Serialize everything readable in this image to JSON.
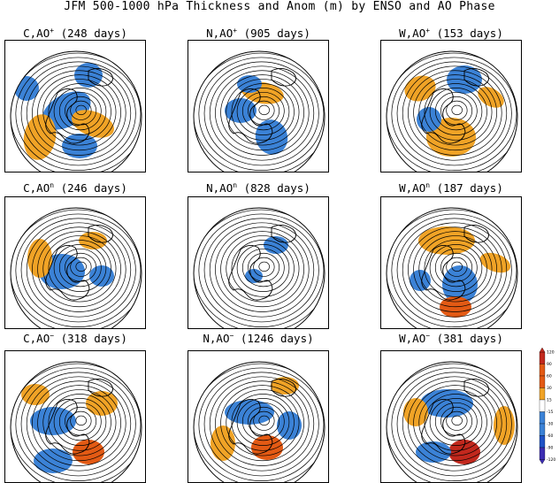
{
  "title": "JFM 500-1000 hPa Thickness and Anom (m) by ENSO and AO Phase",
  "colors": {
    "positive_light": "#f0a326",
    "positive_mid": "#e35a14",
    "positive_dark": "#c2281d",
    "negative_light": "#3b82d6",
    "negative_mid": "#1f52c6",
    "negative_dark": "#3c2db2",
    "contour": "#000000"
  },
  "panels": [
    {
      "enso": "C",
      "ao": "+",
      "days": "(248 days)"
    },
    {
      "enso": "N",
      "ao": "+",
      "days": "(905 days)"
    },
    {
      "enso": "W",
      "ao": "+",
      "days": "(153 days)"
    },
    {
      "enso": "C",
      "ao": "n",
      "days": "(246 days)"
    },
    {
      "enso": "N",
      "ao": "n",
      "days": "(828 days)"
    },
    {
      "enso": "W",
      "ao": "n",
      "days": "(187 days)"
    },
    {
      "enso": "C",
      "ao": "−",
      "days": "(318 days)"
    },
    {
      "enso": "N",
      "ao": "−",
      "days": "(1246 days)"
    },
    {
      "enso": "W",
      "ao": "−",
      "days": "(381 days)"
    }
  ],
  "colorbar": {
    "labels": [
      "120",
      "90",
      "60",
      "30",
      "15",
      "-15",
      "-30",
      "-60",
      "-90",
      "-120"
    ]
  }
}
